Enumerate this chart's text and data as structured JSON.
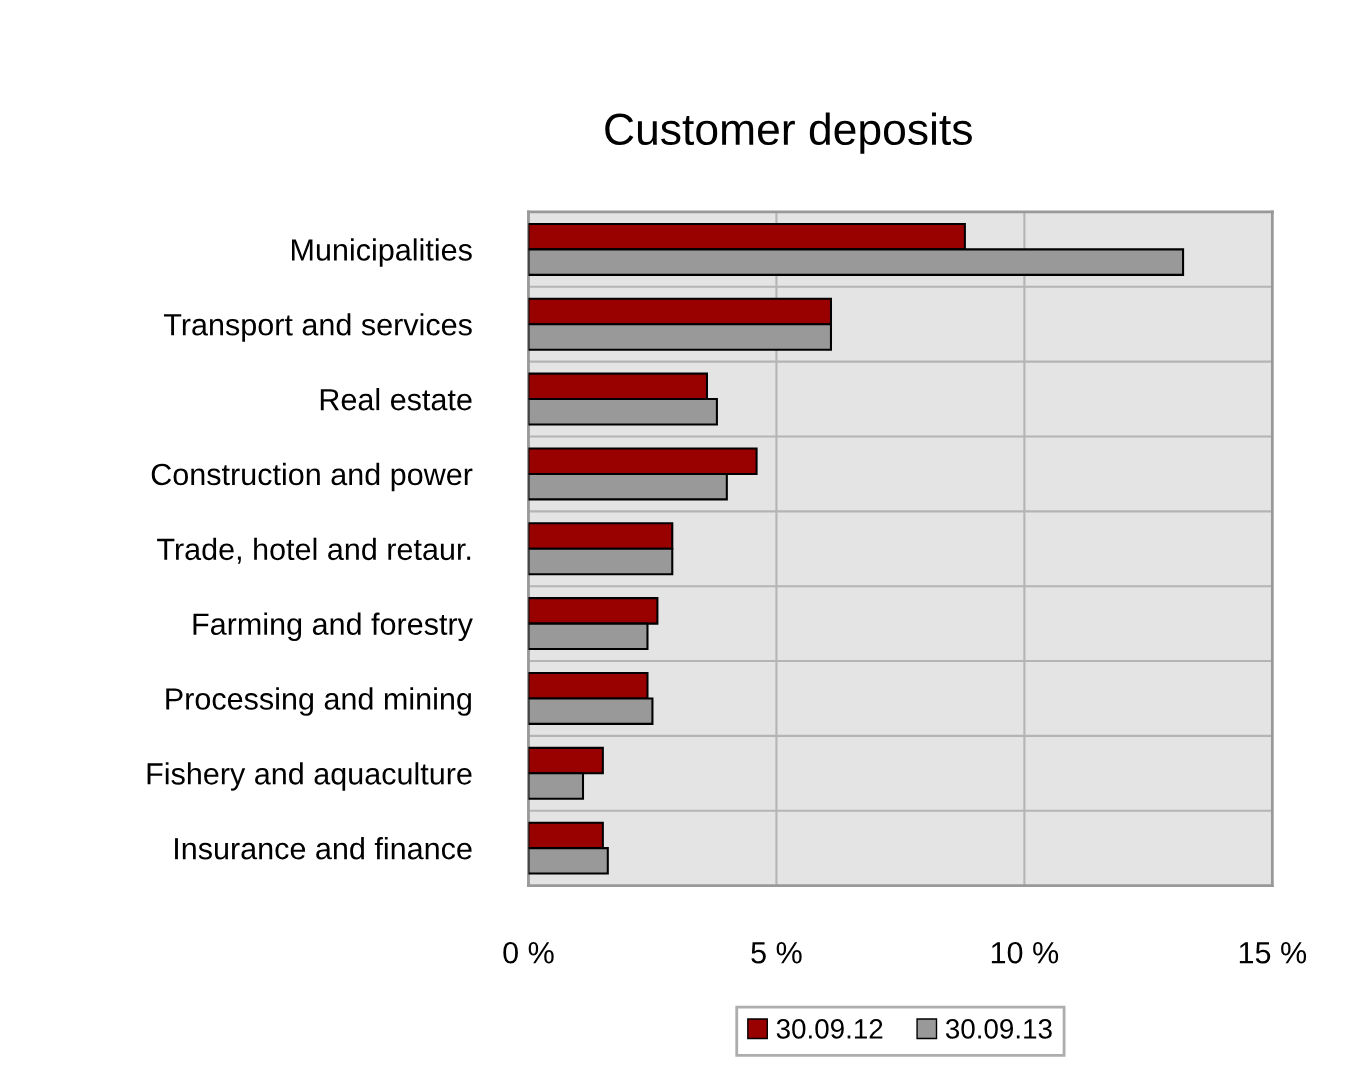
{
  "chart_data": {
    "type": "bar",
    "orientation": "horizontal",
    "title": "Customer deposits",
    "categories": [
      "Municipalities",
      "Transport and services",
      "Real estate",
      "Construction and power",
      "Trade, hotel and retaur.",
      "Farming and forestry",
      "Processing and mining",
      "Fishery and aquaculture",
      "Insurance and finance"
    ],
    "series": [
      {
        "name": "30.09.12",
        "color": "#990000",
        "values": [
          8.8,
          6.1,
          3.6,
          4.6,
          2.9,
          2.6,
          2.4,
          1.5,
          1.5
        ]
      },
      {
        "name": "30.09.13",
        "color": "#999999",
        "values": [
          13.2,
          6.1,
          3.8,
          4.0,
          2.9,
          2.4,
          2.5,
          1.1,
          1.6
        ]
      }
    ],
    "xlim": [
      0,
      15
    ],
    "xticks": [
      {
        "value": 0,
        "label": "0 %"
      },
      {
        "value": 5,
        "label": "5 %"
      },
      {
        "value": 10,
        "label": "10 %"
      },
      {
        "value": 15,
        "label": "15 %"
      }
    ],
    "grid": true,
    "legend": "bottom"
  }
}
